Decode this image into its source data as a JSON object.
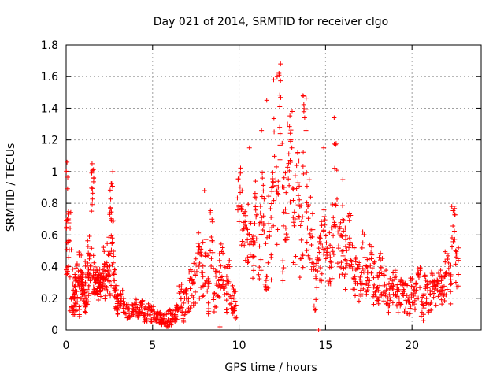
{
  "chart_data": {
    "type": "scatter",
    "title": "Day 021 of 2014, SRMTID for receiver clgo",
    "xlabel": "GPS time / hours",
    "ylabel": "SRMTID / TECUs",
    "xlim": [
      0,
      24
    ],
    "ylim": [
      0,
      1.8
    ],
    "x_ticks": [
      0,
      5,
      10,
      15,
      20
    ],
    "y_ticks": [
      0,
      0.2,
      0.4,
      0.6,
      0.8,
      1,
      1.2,
      1.4,
      1.6,
      1.8
    ],
    "x_tick_labels": [
      "0",
      "5",
      "10",
      "15",
      "20"
    ],
    "y_tick_labels": [
      "0",
      "0.2",
      "0.4",
      "0.6",
      "0.8",
      "1",
      "1.2",
      "1.4",
      "1.6",
      "1.8"
    ],
    "grid": true,
    "marker": "+",
    "series": [
      {
        "name": "clgo SRMTID",
        "color": "#ff0000",
        "x": [
          0.0,
          0.1,
          0.2,
          0.3,
          0.4,
          0.5,
          0.6,
          0.7,
          0.8,
          0.9,
          1.0,
          1.1,
          1.2,
          1.3,
          1.4,
          1.5,
          1.6,
          1.7,
          1.8,
          1.9,
          2.0,
          2.1,
          2.2,
          2.3,
          2.4,
          2.5,
          2.6,
          2.7,
          2.8,
          2.9,
          3.0,
          3.2,
          3.4,
          3.6,
          3.8,
          4.0,
          4.2,
          4.4,
          4.6,
          4.8,
          5.0,
          5.2,
          5.4,
          5.6,
          5.8,
          6.0,
          6.2,
          6.4,
          6.6,
          6.8,
          7.0,
          7.2,
          7.4,
          7.6,
          7.8,
          8.0,
          8.2,
          8.4,
          8.6,
          8.8,
          9.0,
          9.2,
          9.4,
          9.6,
          9.8,
          10.0,
          10.2,
          10.4,
          10.6,
          10.8,
          11.0,
          11.2,
          11.4,
          11.6,
          11.8,
          12.0,
          12.2,
          12.4,
          12.6,
          12.8,
          13.0,
          13.2,
          13.4,
          13.6,
          13.8,
          14.0,
          14.2,
          14.4,
          14.6,
          14.8,
          15.0,
          15.2,
          15.4,
          15.6,
          15.8,
          16.0,
          16.2,
          16.4,
          16.6,
          16.8,
          17.0,
          17.2,
          17.4,
          17.6,
          17.8,
          18.0,
          18.2,
          18.4,
          18.6,
          18.8,
          19.0,
          19.2,
          19.4,
          19.6,
          19.8,
          20.0,
          20.2,
          20.4,
          20.6,
          20.8,
          21.0,
          21.2,
          21.4,
          21.6,
          21.8,
          22.0,
          22.2,
          22.4,
          22.6
        ],
        "values": [
          0.85,
          0.55,
          0.6,
          0.25,
          0.2,
          0.15,
          0.3,
          0.2,
          0.35,
          0.3,
          0.25,
          0.2,
          0.3,
          0.45,
          0.4,
          0.9,
          0.35,
          0.3,
          0.28,
          0.25,
          0.3,
          0.4,
          0.35,
          0.3,
          0.45,
          0.35,
          0.8,
          0.55,
          0.3,
          0.2,
          0.15,
          0.2,
          0.15,
          0.12,
          0.13,
          0.15,
          0.12,
          0.14,
          0.1,
          0.12,
          0.1,
          0.08,
          0.08,
          0.06,
          0.06,
          0.08,
          0.1,
          0.12,
          0.2,
          0.15,
          0.2,
          0.25,
          0.3,
          0.45,
          0.35,
          0.4,
          0.3,
          0.6,
          0.25,
          0.35,
          0.4,
          0.25,
          0.3,
          0.2,
          0.15,
          0.85,
          0.7,
          0.55,
          0.6,
          0.5,
          0.7,
          0.55,
          0.8,
          0.45,
          0.6,
          1.0,
          0.75,
          1.3,
          0.65,
          0.9,
          1.1,
          0.7,
          0.85,
          0.55,
          1.2,
          0.75,
          0.6,
          0.3,
          0.45,
          0.5,
          0.65,
          0.45,
          0.55,
          0.9,
          0.5,
          0.6,
          0.45,
          0.55,
          0.4,
          0.35,
          0.3,
          0.45,
          0.35,
          0.4,
          0.3,
          0.25,
          0.35,
          0.3,
          0.2,
          0.25,
          0.3,
          0.2,
          0.25,
          0.2,
          0.2,
          0.25,
          0.2,
          0.3,
          0.15,
          0.25,
          0.2,
          0.3,
          0.25,
          0.3,
          0.25,
          0.35,
          0.3,
          0.6,
          0.4
        ],
        "spread": [
          0.25,
          0.2,
          0.15,
          0.15,
          0.1,
          0.1,
          0.12,
          0.12,
          0.15,
          0.12,
          0.1,
          0.1,
          0.15,
          0.15,
          0.2,
          0.15,
          0.15,
          0.1,
          0.1,
          0.1,
          0.1,
          0.15,
          0.1,
          0.15,
          0.15,
          0.15,
          0.15,
          0.15,
          0.1,
          0.08,
          0.06,
          0.05,
          0.05,
          0.05,
          0.05,
          0.05,
          0.05,
          0.05,
          0.05,
          0.05,
          0.05,
          0.04,
          0.04,
          0.04,
          0.04,
          0.05,
          0.05,
          0.06,
          0.1,
          0.1,
          0.1,
          0.15,
          0.15,
          0.2,
          0.2,
          0.2,
          0.2,
          0.2,
          0.15,
          0.2,
          0.15,
          0.15,
          0.15,
          0.1,
          0.1,
          0.2,
          0.2,
          0.2,
          0.2,
          0.2,
          0.3,
          0.25,
          0.3,
          0.2,
          0.3,
          0.35,
          0.3,
          0.35,
          0.35,
          0.35,
          0.35,
          0.3,
          0.3,
          0.25,
          0.3,
          0.3,
          0.25,
          0.2,
          0.2,
          0.2,
          0.2,
          0.2,
          0.25,
          0.3,
          0.2,
          0.25,
          0.2,
          0.2,
          0.15,
          0.15,
          0.15,
          0.2,
          0.15,
          0.15,
          0.15,
          0.1,
          0.15,
          0.15,
          0.1,
          0.1,
          0.1,
          0.1,
          0.1,
          0.1,
          0.1,
          0.1,
          0.1,
          0.1,
          0.1,
          0.1,
          0.1,
          0.1,
          0.1,
          0.1,
          0.1,
          0.15,
          0.15,
          0.2,
          0.15
        ],
        "peaks": [
          {
            "x": 12.4,
            "y": 1.68
          },
          {
            "x": 12.2,
            "y": 1.6
          },
          {
            "x": 12.0,
            "y": 1.58
          },
          {
            "x": 13.7,
            "y": 1.48
          },
          {
            "x": 11.6,
            "y": 1.45
          },
          {
            "x": 15.5,
            "y": 1.34
          },
          {
            "x": 12.8,
            "y": 1.3
          },
          {
            "x": 11.3,
            "y": 1.26
          },
          {
            "x": 13.0,
            "y": 1.2
          },
          {
            "x": 14.9,
            "y": 1.15
          },
          {
            "x": 10.6,
            "y": 1.15
          },
          {
            "x": 0.05,
            "y": 1.06
          },
          {
            "x": 1.5,
            "y": 1.05
          },
          {
            "x": 2.7,
            "y": 1.0
          },
          {
            "x": 16.0,
            "y": 0.95
          },
          {
            "x": 8.0,
            "y": 0.88
          },
          {
            "x": 22.3,
            "y": 0.78
          },
          {
            "x": 8.9,
            "y": 0.02
          },
          {
            "x": 14.6,
            "y": 0.0
          }
        ]
      }
    ]
  }
}
